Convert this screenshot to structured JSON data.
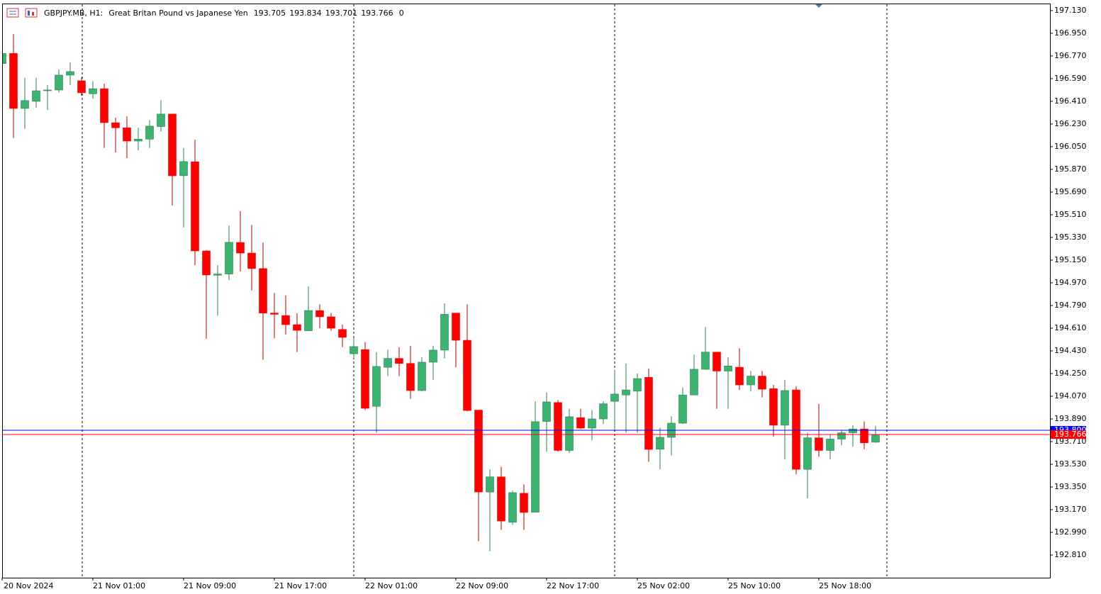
{
  "chart_data": {
    "type": "candlestick",
    "title": "GBPJPY.MB, H1:",
    "subtitle": "Great Britan Pound vs Japanese Yen",
    "header_values": [
      193.705,
      193.834,
      193.701,
      193.766,
      0
    ],
    "categories": [
      "20 Nov 2024",
      null,
      null,
      null,
      null,
      null,
      null,
      null,
      "21 Nov 01:00",
      null,
      null,
      null,
      null,
      null,
      null,
      null,
      "21 Nov 09:00",
      null,
      null,
      null,
      null,
      null,
      null,
      null,
      "21 Nov 17:00",
      null,
      null,
      null,
      null,
      null,
      null,
      null,
      "22 Nov 01:00",
      null,
      null,
      null,
      null,
      null,
      null,
      null,
      "22 Nov 09:00",
      null,
      null,
      null,
      null,
      null,
      null,
      null,
      "22 Nov 17:00",
      null,
      null,
      null,
      null,
      null,
      null,
      null,
      "25 Nov 02:00",
      null,
      null,
      null,
      null,
      null,
      null,
      null,
      "25 Nov 10:00",
      null,
      null,
      null,
      null,
      null,
      null,
      null,
      "25 Nov 18:00",
      null,
      null,
      null,
      null,
      null
    ],
    "open": [
      196.71,
      196.79,
      196.354,
      196.41,
      196.494,
      196.5,
      196.618,
      196.573,
      196.47,
      196.51,
      196.24,
      196.2,
      196.095,
      196.11,
      196.21,
      196.309,
      195.82,
      195.93,
      195.223,
      195.03,
      195.04,
      195.29,
      195.206,
      195.083,
      194.73,
      194.71,
      194.638,
      194.59,
      194.75,
      194.7,
      194.6,
      194.407,
      194.44,
      193.99,
      194.3,
      194.37,
      194.33,
      194.115,
      194.34,
      194.436,
      194.73,
      194.514,
      193.96,
      193.31,
      193.43,
      193.07,
      193.3,
      193.15,
      193.87,
      194.02,
      193.64,
      193.9,
      193.817,
      193.89,
      194.03,
      194.08,
      194.11,
      194.22,
      193.65,
      193.744,
      193.856,
      194.08,
      194.284,
      194.42,
      194.27,
      194.3,
      194.16,
      194.23,
      194.13,
      193.84,
      194.12,
      193.49,
      193.74,
      193.64,
      193.73,
      193.78,
      193.81,
      193.705
    ],
    "high": [
      196.8,
      196.944,
      196.596,
      196.596,
      196.54,
      196.663,
      196.72,
      196.6,
      196.57,
      196.55,
      196.28,
      196.29,
      196.2,
      196.26,
      196.42,
      196.31,
      196.04,
      196.106,
      195.23,
      195.11,
      195.425,
      195.54,
      195.43,
      195.29,
      194.89,
      194.87,
      194.73,
      194.94,
      194.8,
      194.73,
      194.64,
      194.53,
      194.5,
      194.42,
      194.44,
      194.46,
      194.47,
      194.38,
      194.47,
      194.807,
      194.73,
      194.8,
      193.96,
      193.49,
      193.51,
      193.32,
      193.37,
      194.03,
      194.1,
      194.04,
      193.97,
      193.97,
      193.96,
      194.03,
      194.28,
      194.33,
      194.25,
      194.29,
      193.82,
      193.91,
      194.14,
      194.4,
      194.62,
      194.42,
      194.38,
      194.45,
      194.27,
      194.27,
      194.16,
      194.2,
      194.15,
      193.78,
      194.01,
      193.77,
      193.8,
      193.84,
      193.87,
      193.834
    ],
    "low": [
      196.69,
      196.118,
      196.191,
      196.36,
      196.34,
      196.48,
      196.54,
      196.455,
      196.43,
      196.04,
      196.005,
      195.96,
      196.02,
      196.04,
      196.17,
      195.583,
      195.41,
      195.11,
      194.526,
      194.71,
      194.99,
      195.06,
      194.91,
      194.36,
      194.53,
      194.56,
      194.42,
      194.59,
      194.61,
      194.59,
      194.46,
      194.37,
      193.96,
      193.78,
      194.23,
      194.23,
      194.05,
      194.11,
      194.2,
      194.37,
      194.3,
      193.95,
      192.92,
      192.84,
      193.01,
      193.05,
      193.01,
      193.15,
      193.63,
      193.63,
      193.62,
      193.81,
      193.72,
      193.85,
      193.81,
      193.78,
      193.78,
      193.55,
      193.49,
      193.6,
      193.85,
      194.08,
      194.28,
      193.97,
      193.97,
      194.12,
      194.11,
      194.06,
      193.75,
      193.57,
      193.45,
      193.26,
      193.59,
      193.57,
      193.68,
      193.67,
      193.65,
      193.701
    ],
    "close": [
      196.79,
      196.354,
      196.416,
      196.494,
      196.5,
      196.618,
      196.646,
      196.478,
      196.51,
      196.241,
      196.2,
      196.095,
      196.11,
      196.213,
      196.309,
      195.819,
      195.932,
      195.223,
      195.032,
      195.04,
      195.291,
      195.206,
      195.083,
      194.73,
      194.72,
      194.638,
      194.593,
      194.75,
      194.7,
      194.61,
      194.537,
      194.464,
      193.974,
      194.306,
      194.37,
      194.33,
      194.115,
      194.34,
      194.436,
      194.72,
      194.514,
      193.957,
      193.31,
      193.43,
      193.08,
      193.305,
      193.148,
      193.868,
      194.025,
      193.64,
      193.907,
      193.817,
      193.89,
      194.01,
      194.087,
      194.12,
      194.21,
      193.648,
      193.744,
      193.856,
      194.08,
      194.284,
      194.42,
      194.27,
      194.31,
      194.16,
      194.23,
      194.126,
      193.84,
      194.115,
      193.49,
      193.74,
      193.64,
      193.73,
      193.78,
      193.81,
      193.7,
      193.766
    ],
    "up_color": "#3cb371",
    "down_color": "#ff0000",
    "ylim": [
      192.63,
      197.186
    ],
    "yticks": [
      {
        "value": 197.13,
        "label": "197.130"
      },
      {
        "value": 196.95,
        "label": "196.950"
      },
      {
        "value": 196.77,
        "label": "196.770"
      },
      {
        "value": 196.59,
        "label": "196.590"
      },
      {
        "value": 196.41,
        "label": "196.410"
      },
      {
        "value": 196.23,
        "label": "196.230"
      },
      {
        "value": 196.05,
        "label": "196.050"
      },
      {
        "value": 195.87,
        "label": "195.870"
      },
      {
        "value": 195.69,
        "label": "195.690"
      },
      {
        "value": 195.51,
        "label": "195.510"
      },
      {
        "value": 195.33,
        "label": "195.330"
      },
      {
        "value": 195.15,
        "label": "195.150"
      },
      {
        "value": 194.97,
        "label": "194.970"
      },
      {
        "value": 194.79,
        "label": "194.790"
      },
      {
        "value": 194.61,
        "label": "194.610"
      },
      {
        "value": 194.43,
        "label": "194.430"
      },
      {
        "value": 194.25,
        "label": "194.250"
      },
      {
        "value": 194.07,
        "label": "194.070"
      },
      {
        "value": 193.89,
        "label": "193.890"
      },
      {
        "value": 193.71,
        "label": "193.710"
      },
      {
        "value": 193.53,
        "label": "193.530"
      },
      {
        "value": 193.35,
        "label": "193.350"
      },
      {
        "value": 193.17,
        "label": "193.170"
      },
      {
        "value": 192.99,
        "label": "192.990"
      },
      {
        "value": 192.81,
        "label": "192.810"
      }
    ],
    "ask_line": {
      "value": 193.8,
      "label": "193.800",
      "color": "#0000ff"
    },
    "bid_line": {
      "value": 193.766,
      "color": "#ff0000"
    },
    "grid": false
  }
}
